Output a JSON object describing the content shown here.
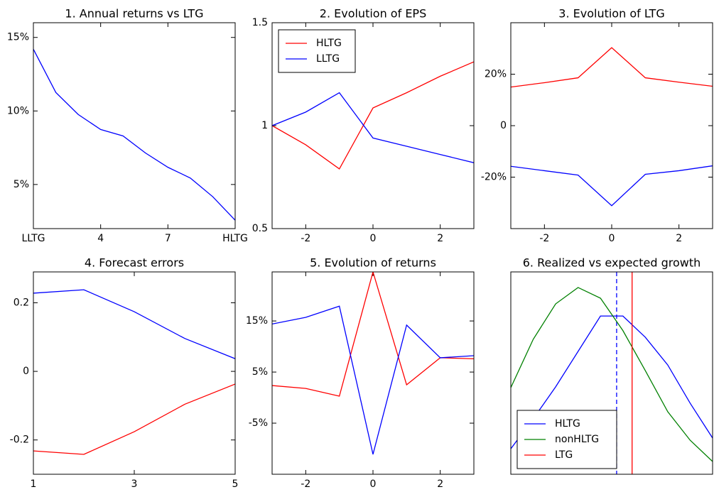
{
  "chart_data": [
    {
      "type": "line",
      "title": "1. Annual returns vs LTG",
      "x": [
        1,
        2,
        3,
        4,
        5,
        6,
        7,
        8,
        9,
        10
      ],
      "series": [
        {
          "color": "#0000ff",
          "values": [
            14.2,
            11.26,
            9.76,
            8.74,
            8.3,
            7.14,
            6.17,
            5.44,
            4.17,
            2.57
          ]
        }
      ],
      "xlim": [
        1,
        10
      ],
      "ylim": [
        2,
        16
      ],
      "xticks": [
        {
          "value": 1,
          "label": "LLTG"
        },
        4,
        7,
        {
          "value": 10,
          "label": "HLTG"
        }
      ],
      "yticks": [
        {
          "value": 5,
          "label": "5%"
        },
        {
          "value": 10,
          "label": "10%"
        },
        {
          "value": 15,
          "label": "15%"
        }
      ]
    },
    {
      "type": "line",
      "title": "2. Evolution of EPS",
      "x": [
        -3,
        -2,
        -1,
        0,
        1,
        2,
        3
      ],
      "series": [
        {
          "name": "HLTG",
          "color": "#ff0000",
          "values": [
            1.0,
            0.907,
            0.79,
            1.086,
            1.16,
            1.24,
            1.31
          ]
        },
        {
          "name": "LLTG",
          "color": "#0000ff",
          "values": [
            1.0,
            1.066,
            1.16,
            0.94,
            0.9,
            0.86,
            0.82
          ]
        }
      ],
      "xlim": [
        -3,
        3
      ],
      "ylim": [
        0.5,
        1.5
      ],
      "xticks": [
        -2,
        0,
        2
      ],
      "yticks": [
        0.5,
        1,
        1.5
      ],
      "legend": "upper-left"
    },
    {
      "type": "line",
      "title": "3. Evolution of LTG",
      "x": [
        -3,
        -2,
        -1,
        0,
        1,
        2,
        3
      ],
      "series": [
        {
          "color": "#ff0000",
          "values": [
            15,
            16.7,
            18.6,
            30.3,
            18.6,
            16.9,
            15.3
          ]
        },
        {
          "color": "#0000ff",
          "values": [
            -15.8,
            -17.5,
            -19.2,
            -31.1,
            -18.9,
            -17.5,
            -15.6
          ]
        }
      ],
      "xlim": [
        -3,
        3
      ],
      "ylim": [
        -40,
        40
      ],
      "xticks": [
        -2,
        0,
        2
      ],
      "yticks": [
        {
          "value": -20,
          "label": "-20%"
        },
        0,
        {
          "value": 20,
          "label": "20%"
        }
      ]
    },
    {
      "type": "line",
      "title": "4. Forecast errors",
      "x": [
        1,
        2,
        3,
        4,
        5
      ],
      "series": [
        {
          "color": "#0000ff",
          "values": [
            0.228,
            0.238,
            0.174,
            0.096,
            0.037
          ]
        },
        {
          "color": "#ff0000",
          "values": [
            -0.232,
            -0.242,
            -0.176,
            -0.096,
            -0.037
          ]
        }
      ],
      "xlim": [
        1,
        5
      ],
      "ylim": [
        -0.3,
        0.29
      ],
      "xticks": [
        1,
        3,
        5
      ],
      "yticks": [
        -0.2,
        0,
        0.2
      ]
    },
    {
      "type": "line",
      "title": "5. Evolution of returns",
      "x": [
        -3,
        -2,
        -1,
        0,
        1,
        2,
        3
      ],
      "series": [
        {
          "color": "#ff0000",
          "values": [
            2.36,
            1.8,
            0.28,
            24.6,
            2.5,
            7.8,
            7.6
          ]
        },
        {
          "color": "#0000ff",
          "values": [
            14.4,
            15.7,
            17.9,
            -11.1,
            14.2,
            7.8,
            8.2
          ]
        }
      ],
      "xlim": [
        -3,
        3
      ],
      "ylim": [
        -15,
        24.6
      ],
      "xticks": [
        -2,
        0,
        2
      ],
      "yticks": [
        {
          "value": -5,
          "label": "-5%"
        },
        {
          "value": 5,
          "label": "5%"
        },
        {
          "value": 15,
          "label": "15%"
        }
      ]
    },
    {
      "type": "line",
      "title": "6. Realized vs expected growth",
      "x": [
        0,
        1,
        2,
        3,
        4,
        5,
        6,
        7,
        8,
        9
      ],
      "series": [
        {
          "name": "HLTG",
          "color": "#0000ff",
          "values": [
            1.26,
            2.74,
            4.32,
            6.07,
            7.82,
            7.82,
            6.77,
            5.4,
            3.51,
            1.79
          ],
          "vline": 4.72,
          "vline_style": "dashed"
        },
        {
          "name": "nonHLTG",
          "color": "#008000",
          "values": [
            4.28,
            6.67,
            8.42,
            9.23,
            8.7,
            7.1,
            5.12,
            3.09,
            1.68,
            0.63
          ]
        },
        {
          "name": "LTG",
          "color": "#ff0000",
          "vline": 5.41,
          "vline_style": "solid"
        }
      ],
      "xlim": [
        0,
        9
      ],
      "ylim": [
        0,
        10
      ],
      "legend": "lower-left"
    }
  ]
}
